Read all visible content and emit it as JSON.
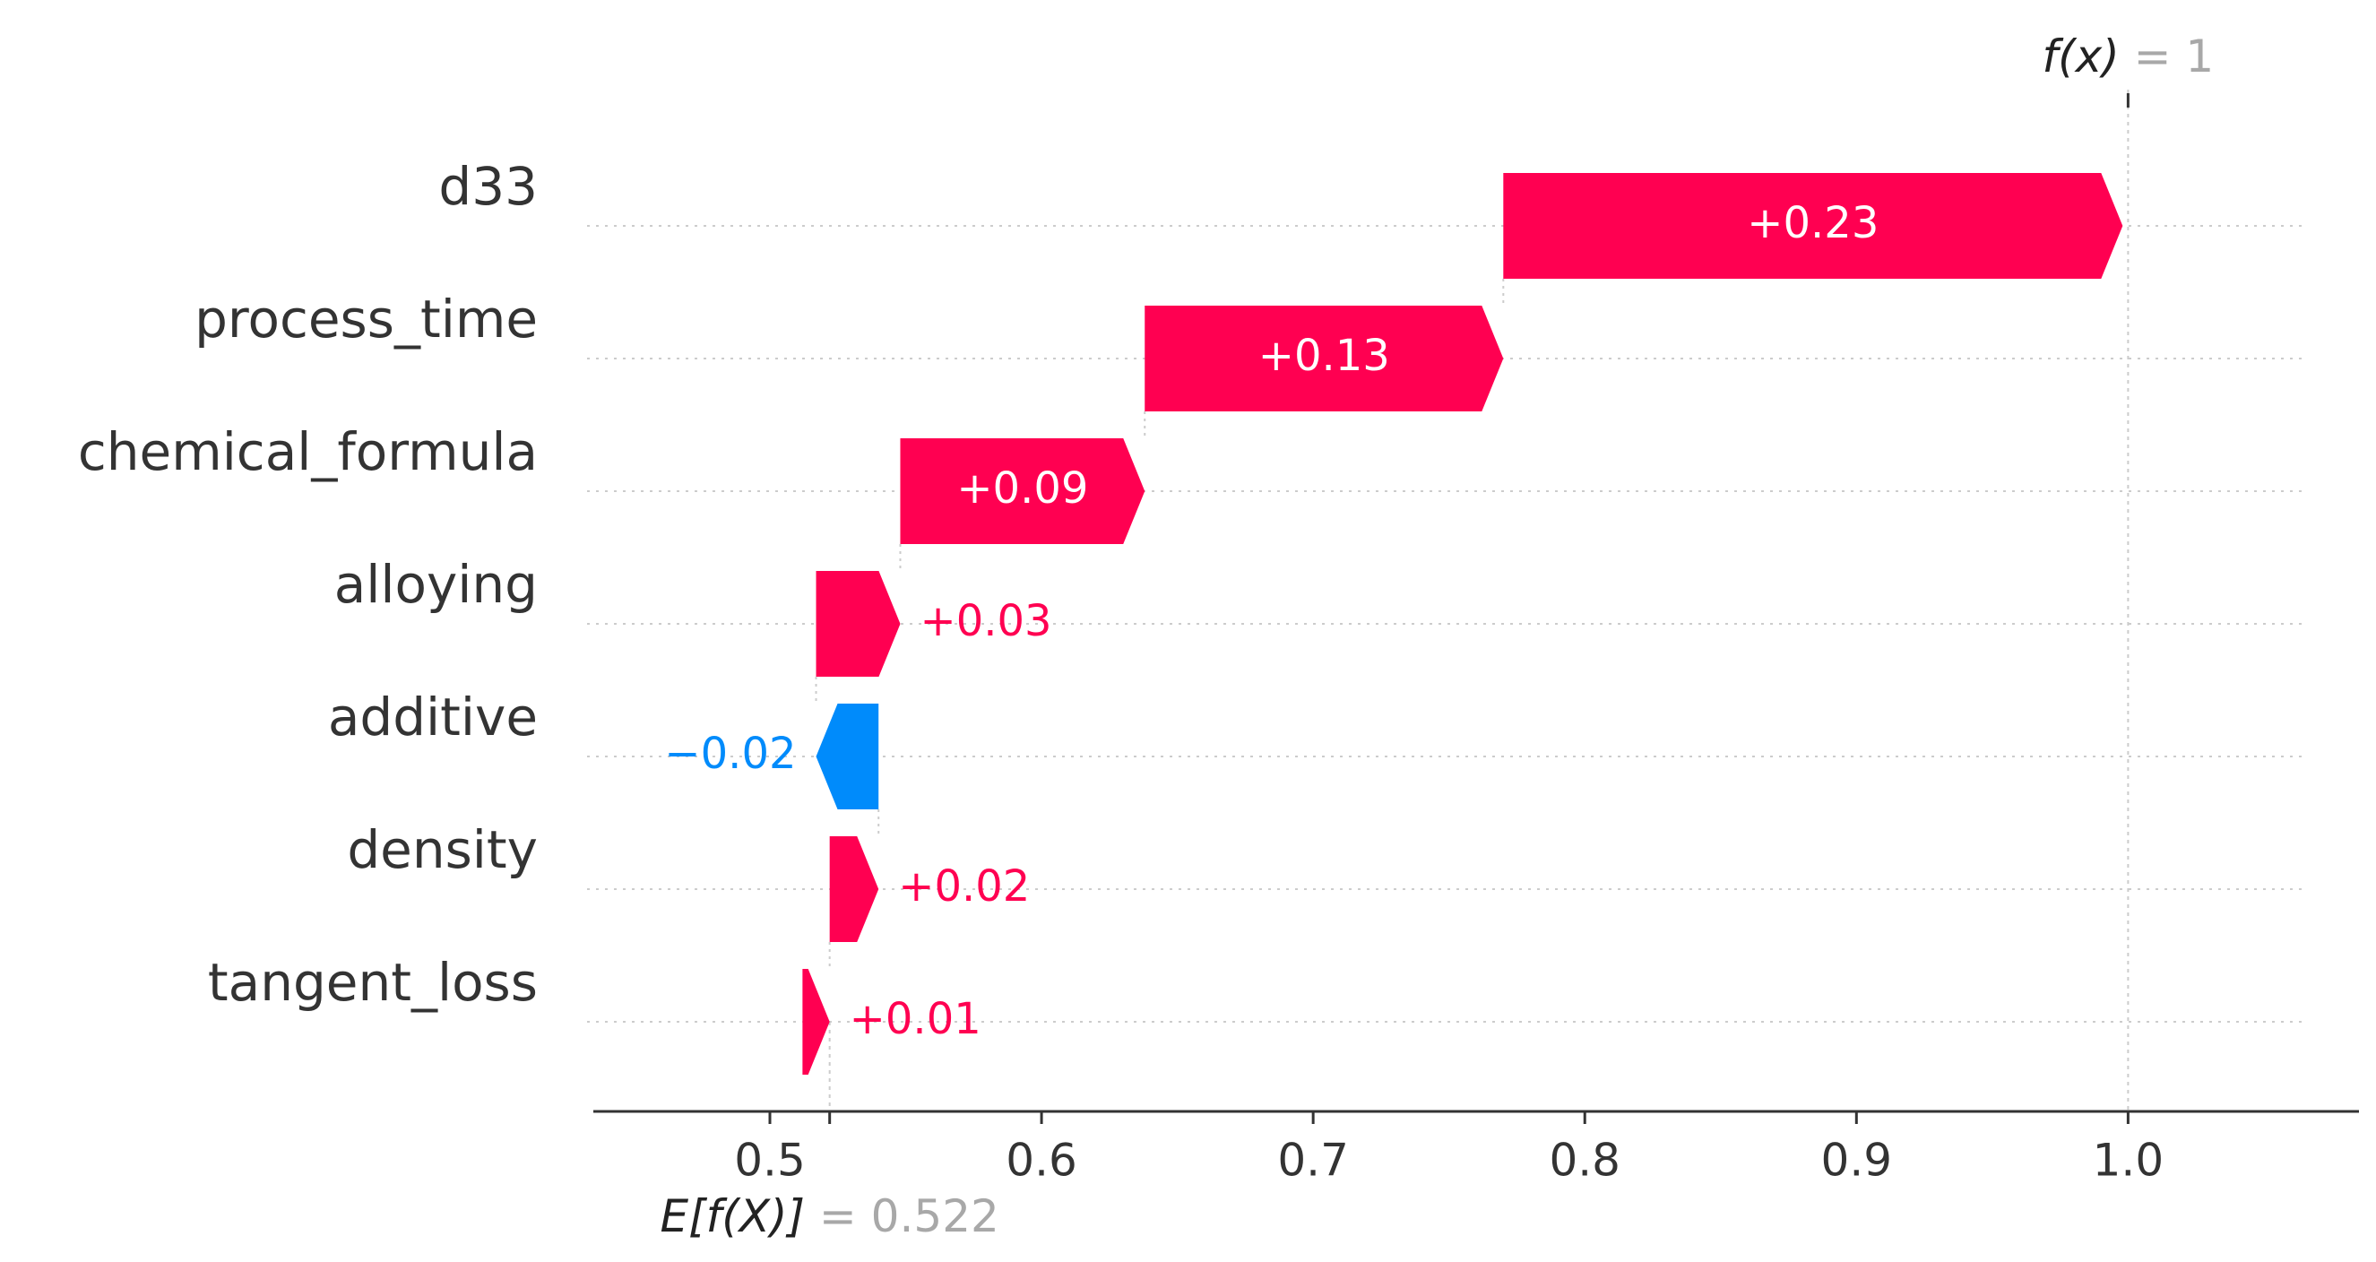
{
  "chart_data": {
    "type": "waterfall",
    "title": "",
    "xlabel": "",
    "ylabel": "",
    "xlim": [
      0.435,
      1.085
    ],
    "x_ticks": [
      {
        "value": 0.5,
        "label": "0.5"
      },
      {
        "value": 0.6,
        "label": "0.6"
      },
      {
        "value": 0.7,
        "label": "0.7"
      },
      {
        "value": 0.8,
        "label": "0.8"
      },
      {
        "value": 0.9,
        "label": "0.9"
      },
      {
        "value": 1.0,
        "label": "1.0"
      }
    ],
    "base_value": 0.522,
    "base_label": {
      "name": "E[f(X)]",
      "eq": " = 0.522"
    },
    "output_value": 1.0,
    "output_label": {
      "name": "f(x)",
      "eq": " = 1"
    },
    "features": [
      {
        "name": "d33",
        "start": 0.77,
        "end": 0.998,
        "label": "+0.23",
        "label_inside": true
      },
      {
        "name": "process_time",
        "start": 0.638,
        "end": 0.77,
        "label": "+0.13",
        "label_inside": true
      },
      {
        "name": "chemical_formula",
        "start": 0.548,
        "end": 0.638,
        "label": "+0.09",
        "label_inside": true
      },
      {
        "name": "alloying",
        "start": 0.517,
        "end": 0.548,
        "label": "+0.03",
        "label_inside": false
      },
      {
        "name": "additive",
        "start": 0.54,
        "end": 0.517,
        "label": "−0.02",
        "label_inside": false
      },
      {
        "name": "density",
        "start": 0.522,
        "end": 0.54,
        "label": "+0.02",
        "label_inside": false
      },
      {
        "name": "tangent_loss",
        "start": 0.512,
        "end": 0.522,
        "label": "+0.01",
        "label_inside": false
      }
    ],
    "colors": {
      "positive": "#ff0051",
      "negative": "#008bfb",
      "axis": "#333333",
      "grid": "#cccccc"
    }
  }
}
